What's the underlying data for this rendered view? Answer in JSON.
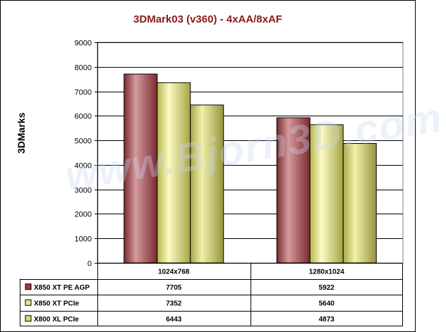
{
  "chart_data": {
    "type": "bar",
    "title": "3DMark03 (v360) - 4xAA/8xAF",
    "ylabel": "3DMarks",
    "xlabel": "",
    "ylim": [
      0,
      9000
    ],
    "yticks": [
      0,
      1000,
      2000,
      3000,
      4000,
      5000,
      6000,
      7000,
      8000,
      9000
    ],
    "grid": true,
    "categories": [
      "1024x768",
      "1280x1024"
    ],
    "series": [
      {
        "name": "X850 XT PE AGP",
        "values": [
          7705,
          5922
        ],
        "color": "#a0393f"
      },
      {
        "name": "X850 XT PCIe",
        "values": [
          7352,
          5640
        ],
        "color": "#e8e68a"
      },
      {
        "name": "X800 XL PCIe",
        "values": [
          6443,
          4873
        ],
        "color": "#d9d77a"
      }
    ],
    "legend": "data-table-below"
  },
  "watermark": "www.Bjorn3D.com"
}
